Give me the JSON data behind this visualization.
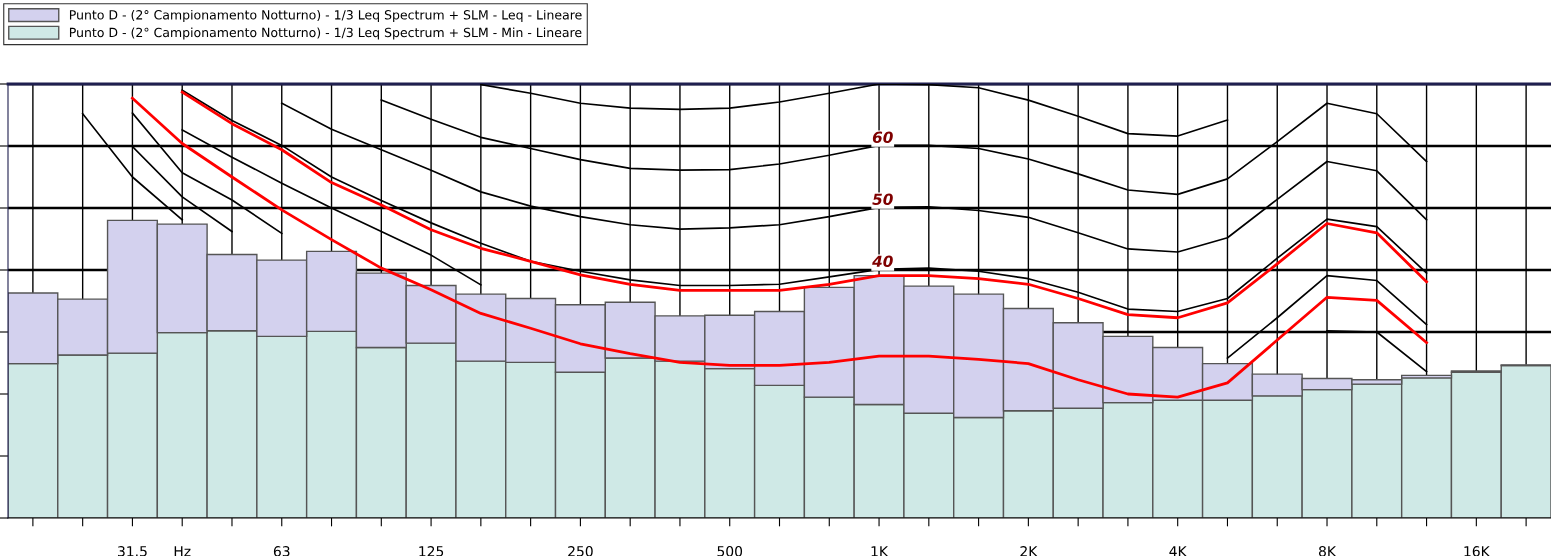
{
  "chart_data": {
    "type": "bar",
    "stacked": true,
    "legend": "top left",
    "grid": true,
    "categories": [
      null,
      null,
      "31.5",
      "Hz",
      null,
      "63",
      null,
      null,
      "125",
      null,
      null,
      "250",
      null,
      null,
      "500",
      null,
      null,
      "1K",
      null,
      null,
      "2K",
      null,
      null,
      "4K",
      null,
      null,
      "8K",
      null,
      null,
      "16K",
      null
    ],
    "ylim": [
      0,
      70
    ],
    "yticks": [
      {
        "value": 0,
        "label": null
      },
      {
        "value": 10,
        "label": null
      },
      {
        "value": 20,
        "label": null
      },
      {
        "value": 30,
        "label": null
      },
      40,
      50,
      60,
      {
        "value": 70,
        "label": null
      }
    ],
    "series": [
      {
        "name": "Punto D - (2° Campionamento Notturno) - 1/3 Leq Spectrum + SLM - Min - Lineare",
        "color": "#cfe9e6",
        "values": [
          24.9,
          26.3,
          26.6,
          29.9,
          30.2,
          29.3,
          30.1,
          27.5,
          28.2,
          25.3,
          25.1,
          23.5,
          25.8,
          25.3,
          24.1,
          21.4,
          19.5,
          18.3,
          16.9,
          16.2,
          17.3,
          17.7,
          18.6,
          19.0,
          19.0,
          19.7,
          20.7,
          21.6,
          22.6,
          23.5,
          24.6
        ]
      },
      {
        "name": "Punto D - (2° Campionamento Notturno) - 1/3 Leq Spectrum + SLM - Leq - Lineare",
        "color": "#d3d1ee",
        "values": [
          11.4,
          9.0,
          21.4,
          17.5,
          12.3,
          12.3,
          12.9,
          12.0,
          9.3,
          10.8,
          10.3,
          10.9,
          9.0,
          7.3,
          8.6,
          11.9,
          17.7,
          20.8,
          20.5,
          19.9,
          16.5,
          13.8,
          10.7,
          8.5,
          5.9,
          3.5,
          1.8,
          0.7,
          0.4,
          0.2,
          0.1
        ]
      },
      {
        "type": "line",
        "color": "#000000",
        "values": [
          null,
          null,
          null,
          null,
          null,
          null,
          null,
          null,
          null,
          69.9,
          68.5,
          66.9,
          66.1,
          65.9,
          66.1,
          67.1,
          68.5,
          70.0,
          69.9,
          69.4,
          67.4,
          64.8,
          62.0,
          61.6,
          64.2,
          null,
          null,
          null,
          null,
          null,
          null
        ]
      },
      {
        "type": "line",
        "color": "#000000",
        "values": [
          null,
          null,
          null,
          null,
          null,
          null,
          null,
          67.4,
          64.3,
          61.4,
          59.6,
          57.8,
          56.4,
          56.1,
          56.2,
          57.1,
          58.5,
          60.1,
          60.1,
          59.6,
          57.9,
          55.5,
          52.9,
          52.2,
          54.7,
          60.7,
          66.9,
          65.2,
          57.5,
          null,
          null
        ]
      },
      {
        "type": "line",
        "color": "#000000",
        "values": [
          null,
          null,
          null,
          null,
          null,
          66.9,
          62.7,
          59.4,
          56.1,
          52.6,
          50.3,
          48.6,
          47.3,
          46.6,
          46.8,
          47.3,
          48.6,
          50.1,
          50.2,
          49.6,
          48.5,
          46.0,
          43.4,
          42.9,
          45.2,
          51.4,
          57.5,
          56.0,
          48.1,
          null,
          null
        ]
      },
      {
        "type": "line",
        "color": "#000000",
        "values": [
          null,
          null,
          null,
          69.0,
          64.1,
          60.1,
          55.0,
          51.2,
          47.6,
          44.3,
          41.4,
          39.8,
          38.4,
          37.5,
          37.5,
          37.7,
          38.9,
          40.1,
          40.3,
          39.8,
          38.6,
          36.4,
          33.7,
          33.3,
          35.4,
          41.9,
          48.2,
          47.0,
          39.5,
          null,
          null
        ]
      },
      {
        "type": "line",
        "color": "#000000",
        "values": [
          null,
          null,
          null,
          62.6,
          58.2,
          54.0,
          50.0,
          46.2,
          42.4,
          37.6,
          null,
          null,
          null,
          null,
          null,
          null,
          null,
          null,
          null,
          null,
          null,
          null,
          null,
          null,
          25.8,
          32.3,
          39.1,
          38.3,
          31.2,
          null,
          null
        ]
      },
      {
        "type": "line",
        "color": "#000000",
        "values": [
          null,
          null,
          65.3,
          55.7,
          51.3,
          45.9,
          null,
          null,
          null,
          null,
          null,
          null,
          null,
          null,
          null,
          null,
          null,
          null,
          null,
          null,
          null,
          null,
          null,
          null,
          null,
          null,
          30.2,
          30.0,
          23.6,
          null,
          null
        ]
      },
      {
        "type": "line",
        "color": "#000000",
        "values": [
          null,
          null,
          59.9,
          51.8,
          46.2,
          null,
          null,
          null,
          null,
          null,
          null,
          null,
          null,
          null,
          null,
          null,
          null,
          null,
          null,
          null,
          null,
          null,
          null,
          null,
          null,
          null,
          null,
          null,
          null,
          null,
          null
        ]
      },
      {
        "type": "line",
        "color": "#000000",
        "values": [
          null,
          65.2,
          55.0,
          48.1,
          null,
          null,
          null,
          null,
          null,
          null,
          null,
          null,
          null,
          null,
          null,
          null,
          null,
          null,
          null,
          null,
          null,
          null,
          null,
          null,
          null,
          null,
          null,
          null,
          null,
          null,
          null
        ]
      },
      {
        "type": "line",
        "color": "#ff0000",
        "values": [
          null,
          null,
          null,
          68.7,
          63.6,
          59.4,
          54.1,
          50.5,
          46.5,
          43.5,
          41.4,
          39.2,
          37.7,
          36.7,
          36.7,
          36.7,
          37.7,
          39.1,
          39.1,
          38.6,
          37.7,
          35.4,
          32.8,
          32.3,
          34.7,
          41.0,
          47.5,
          46.0,
          38.1,
          null,
          null
        ]
      },
      {
        "type": "line",
        "color": "#ff0000",
        "values": [
          null,
          null,
          67.7,
          60.4,
          55.0,
          49.7,
          44.9,
          40.3,
          36.8,
          33.0,
          30.6,
          28.1,
          26.5,
          25.1,
          24.6,
          24.6,
          25.1,
          26.1,
          26.1,
          25.6,
          24.9,
          22.3,
          20.0,
          19.5,
          21.8,
          28.7,
          35.6,
          35.1,
          28.3,
          null,
          null
        ]
      }
    ]
  }
}
